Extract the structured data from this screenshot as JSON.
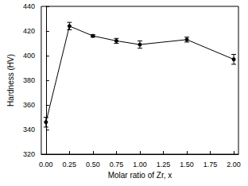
{
  "chart_data": {
    "type": "line",
    "x": [
      0,
      0.25,
      0.5,
      0.75,
      1.0,
      1.5,
      2.0
    ],
    "values": [
      346,
      424,
      416,
      412,
      409,
      413,
      397
    ],
    "errors": [
      4,
      3,
      1,
      2,
      3,
      2,
      4
    ],
    "color": "#000000",
    "marker": "circle",
    "line_style": "solid",
    "x_label": "Molar ratio of Zr, x",
    "y_label": "Hardness (HV)",
    "xlim": [
      -0.05,
      2.05
    ],
    "xticks": [
      {
        "value": 0,
        "label": "0.00"
      },
      {
        "value": 0.25,
        "label": "0.25"
      },
      {
        "value": 0.5,
        "label": "0.50"
      },
      {
        "value": 0.75,
        "label": "0.75"
      },
      {
        "value": 1.0,
        "label": "1.00"
      },
      {
        "value": 1.25,
        "label": "1.25"
      },
      {
        "value": 1.5,
        "label": "1.50"
      },
      {
        "value": 1.75,
        "label": "1.75"
      },
      {
        "value": 2.0,
        "label": "2.00"
      }
    ],
    "ylim": [
      320,
      440
    ],
    "yticks": [
      320,
      340,
      360,
      380,
      400,
      420,
      440
    ],
    "grid": false
  }
}
